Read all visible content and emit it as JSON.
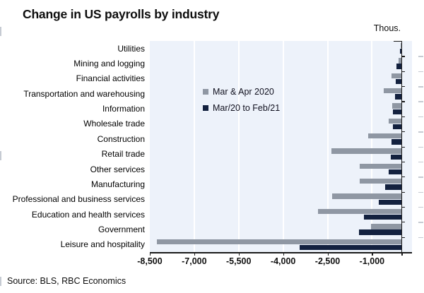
{
  "title": "Change in US payrolls by industry",
  "unit_label": "Thous.",
  "source": "Source: BLS, RBC Economics",
  "colors": {
    "series_gray": "#8f97a3",
    "series_navy": "#13213f",
    "plot_background": "#edf2fa",
    "gridline": "#ffffff",
    "axis": "#1a1a1a"
  },
  "chart_data": {
    "type": "bar",
    "orientation": "horizontal",
    "title": "Change in US payrolls by industry",
    "unit": "Thous.",
    "xlabel": "",
    "ylabel": "",
    "xlim": [
      -8500,
      350
    ],
    "grid": true,
    "legend_position": "inside-upper-middle",
    "categories": [
      "Utilities",
      "Mining and logging",
      "Financial activities",
      "Transportation and warehousing",
      "Information",
      "Wholesale trade",
      "Construction",
      "Retail trade",
      "Other services",
      "Manufacturing",
      "Professional and business services",
      "Education and health services",
      "Government",
      "Leisure and hospitality"
    ],
    "series": [
      {
        "name": "Mar & Apr 2020",
        "color": "#8f97a3",
        "values": [
          -20,
          -100,
          -330,
          -600,
          -320,
          -440,
          -1130,
          -2370,
          -1410,
          -1410,
          -2350,
          -2830,
          -1040,
          -8250
        ]
      },
      {
        "name": "Mar/20 to Feb/21",
        "color": "#13213f",
        "values": [
          -60,
          -170,
          -190,
          -220,
          -290,
          -300,
          -340,
          -370,
          -440,
          -560,
          -780,
          -1280,
          -1440,
          -3450
        ]
      }
    ],
    "xticks": [
      -8500,
      -7000,
      -5500,
      -4000,
      -2500,
      -1000
    ],
    "xtick_labels": [
      "-8,500",
      "-7,000",
      "-5,500",
      "-4,000",
      "-2,500",
      "-1,000"
    ]
  }
}
